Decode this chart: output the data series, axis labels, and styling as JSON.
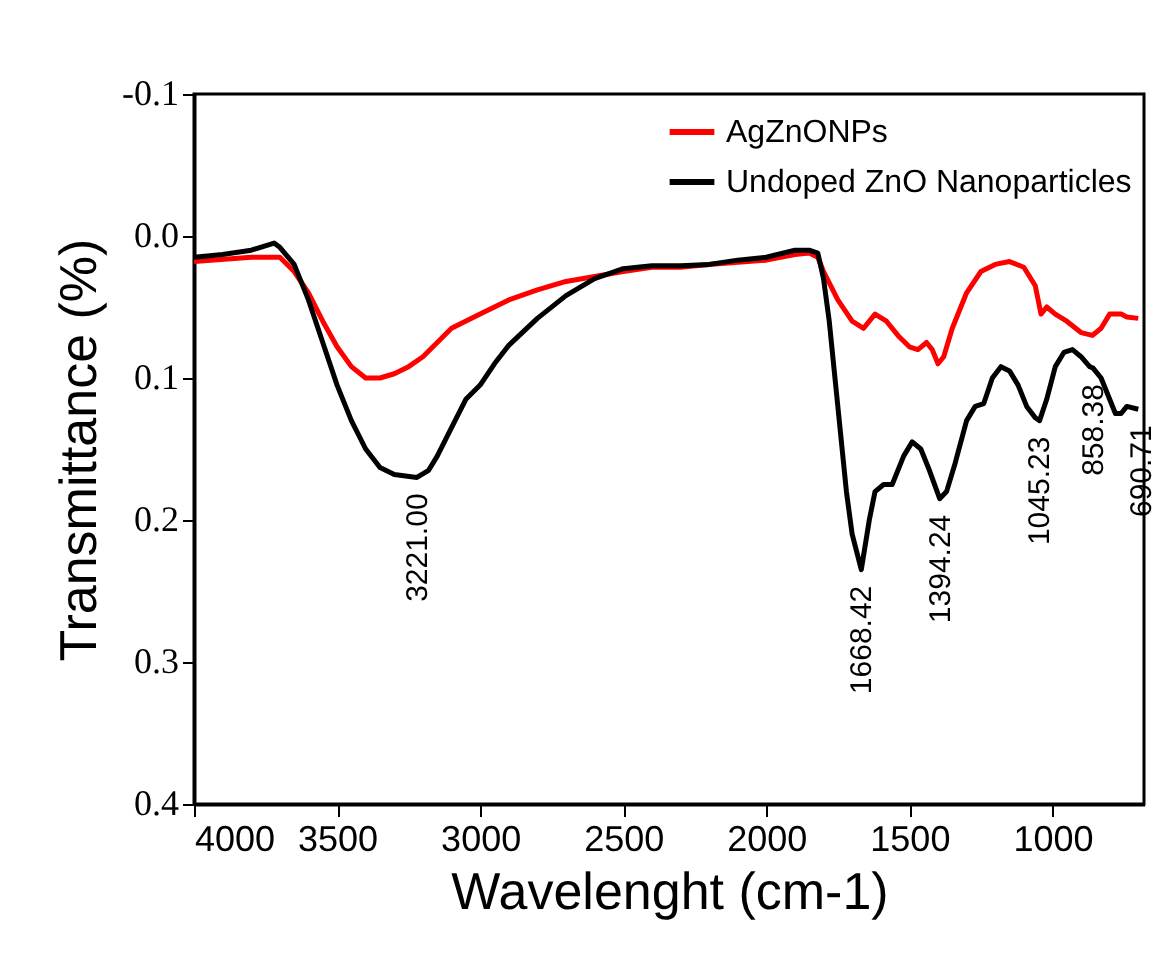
{
  "chart_data": {
    "type": "line",
    "xlabel": "Wavelenght (cm-1)",
    "ylabel": "Transmittance (%)",
    "xlim": [
      4000,
      680
    ],
    "xticks": [
      4000,
      3500,
      3000,
      2500,
      2000,
      1500,
      1000
    ],
    "ylim": [
      0.4,
      -0.1
    ],
    "yticks": [
      -0.1,
      {
        "value": 0,
        "label": "0.0"
      },
      0.1,
      0.2,
      0.3,
      0.4
    ],
    "grid": false,
    "legend": "top right",
    "marker": "none",
    "line_style": "solid",
    "series": [
      {
        "name": "AgZnONPs",
        "color": "#ff0000",
        "x": [
          4000,
          3800,
          3700,
          3650,
          3600,
          3550,
          3500,
          3450,
          3400,
          3350,
          3300,
          3250,
          3200,
          3150,
          3100,
          3000,
          2900,
          2800,
          2700,
          2500,
          2400,
          2300,
          2200,
          2000,
          1900,
          1850,
          1820,
          1800,
          1750,
          1700,
          1660,
          1620,
          1580,
          1540,
          1500,
          1470,
          1440,
          1420,
          1400,
          1380,
          1350,
          1300,
          1250,
          1200,
          1150,
          1100,
          1060,
          1040,
          1020,
          990,
          950,
          900,
          860,
          830,
          800,
          760,
          740,
          700
        ],
        "values": [
          0.018,
          0.015,
          0.015,
          0.025,
          0.04,
          0.06,
          0.078,
          0.092,
          0.1,
          0.1,
          0.097,
          0.092,
          0.085,
          0.075,
          0.065,
          0.055,
          0.045,
          0.038,
          0.032,
          0.025,
          0.022,
          0.022,
          0.02,
          0.017,
          0.013,
          0.012,
          0.015,
          0.025,
          0.045,
          0.06,
          0.065,
          0.055,
          0.06,
          0.07,
          0.078,
          0.08,
          0.075,
          0.08,
          0.09,
          0.085,
          0.065,
          0.04,
          0.025,
          0.02,
          0.018,
          0.022,
          0.035,
          0.055,
          0.05,
          0.055,
          0.06,
          0.068,
          0.07,
          0.065,
          0.055,
          0.055,
          0.057,
          0.058
        ]
      },
      {
        "name": "Undoped ZnO Nanoparticles",
        "color": "#000000",
        "x": [
          4000,
          3900,
          3800,
          3720,
          3700,
          3650,
          3600,
          3550,
          3500,
          3450,
          3400,
          3350,
          3300,
          3221,
          3180,
          3150,
          3100,
          3050,
          3000,
          2950,
          2900,
          2800,
          2700,
          2600,
          2500,
          2400,
          2300,
          2200,
          2100,
          2000,
          1900,
          1850,
          1820,
          1800,
          1780,
          1760,
          1740,
          1720,
          1700,
          1668,
          1640,
          1620,
          1590,
          1560,
          1520,
          1490,
          1460,
          1430,
          1394,
          1370,
          1340,
          1300,
          1270,
          1240,
          1210,
          1180,
          1150,
          1120,
          1090,
          1060,
          1045,
          1020,
          990,
          960,
          930,
          900,
          870,
          858,
          830,
          800,
          780,
          760,
          740,
          700
        ],
        "values": [
          0.015,
          0.013,
          0.01,
          0.005,
          0.008,
          0.02,
          0.045,
          0.075,
          0.105,
          0.13,
          0.15,
          0.163,
          0.168,
          0.17,
          0.165,
          0.155,
          0.135,
          0.115,
          0.105,
          0.09,
          0.077,
          0.058,
          0.042,
          0.03,
          0.023,
          0.021,
          0.021,
          0.02,
          0.017,
          0.015,
          0.01,
          0.01,
          0.012,
          0.03,
          0.06,
          0.1,
          0.14,
          0.18,
          0.21,
          0.235,
          0.2,
          0.18,
          0.175,
          0.175,
          0.155,
          0.145,
          0.15,
          0.165,
          0.185,
          0.18,
          0.16,
          0.13,
          0.12,
          0.118,
          0.1,
          0.092,
          0.095,
          0.105,
          0.12,
          0.128,
          0.13,
          0.115,
          0.092,
          0.082,
          0.08,
          0.085,
          0.092,
          0.093,
          0.1,
          0.115,
          0.125,
          0.125,
          0.12,
          0.122
        ]
      }
    ],
    "annotations": [
      {
        "text": "3221.00",
        "x": 3221,
        "y": 0.17
      },
      {
        "text": "1668.42",
        "x": 1668.42,
        "y": 0.235
      },
      {
        "text": "1394.24",
        "x": 1394.24,
        "y": 0.185
      },
      {
        "text": "1045.23",
        "x": 1045.23,
        "y": 0.13
      },
      {
        "text": "858.38",
        "x": 858.38,
        "y": 0.093
      },
      {
        "text": "690.71",
        "x": 690.71,
        "y": 0.122
      }
    ]
  }
}
